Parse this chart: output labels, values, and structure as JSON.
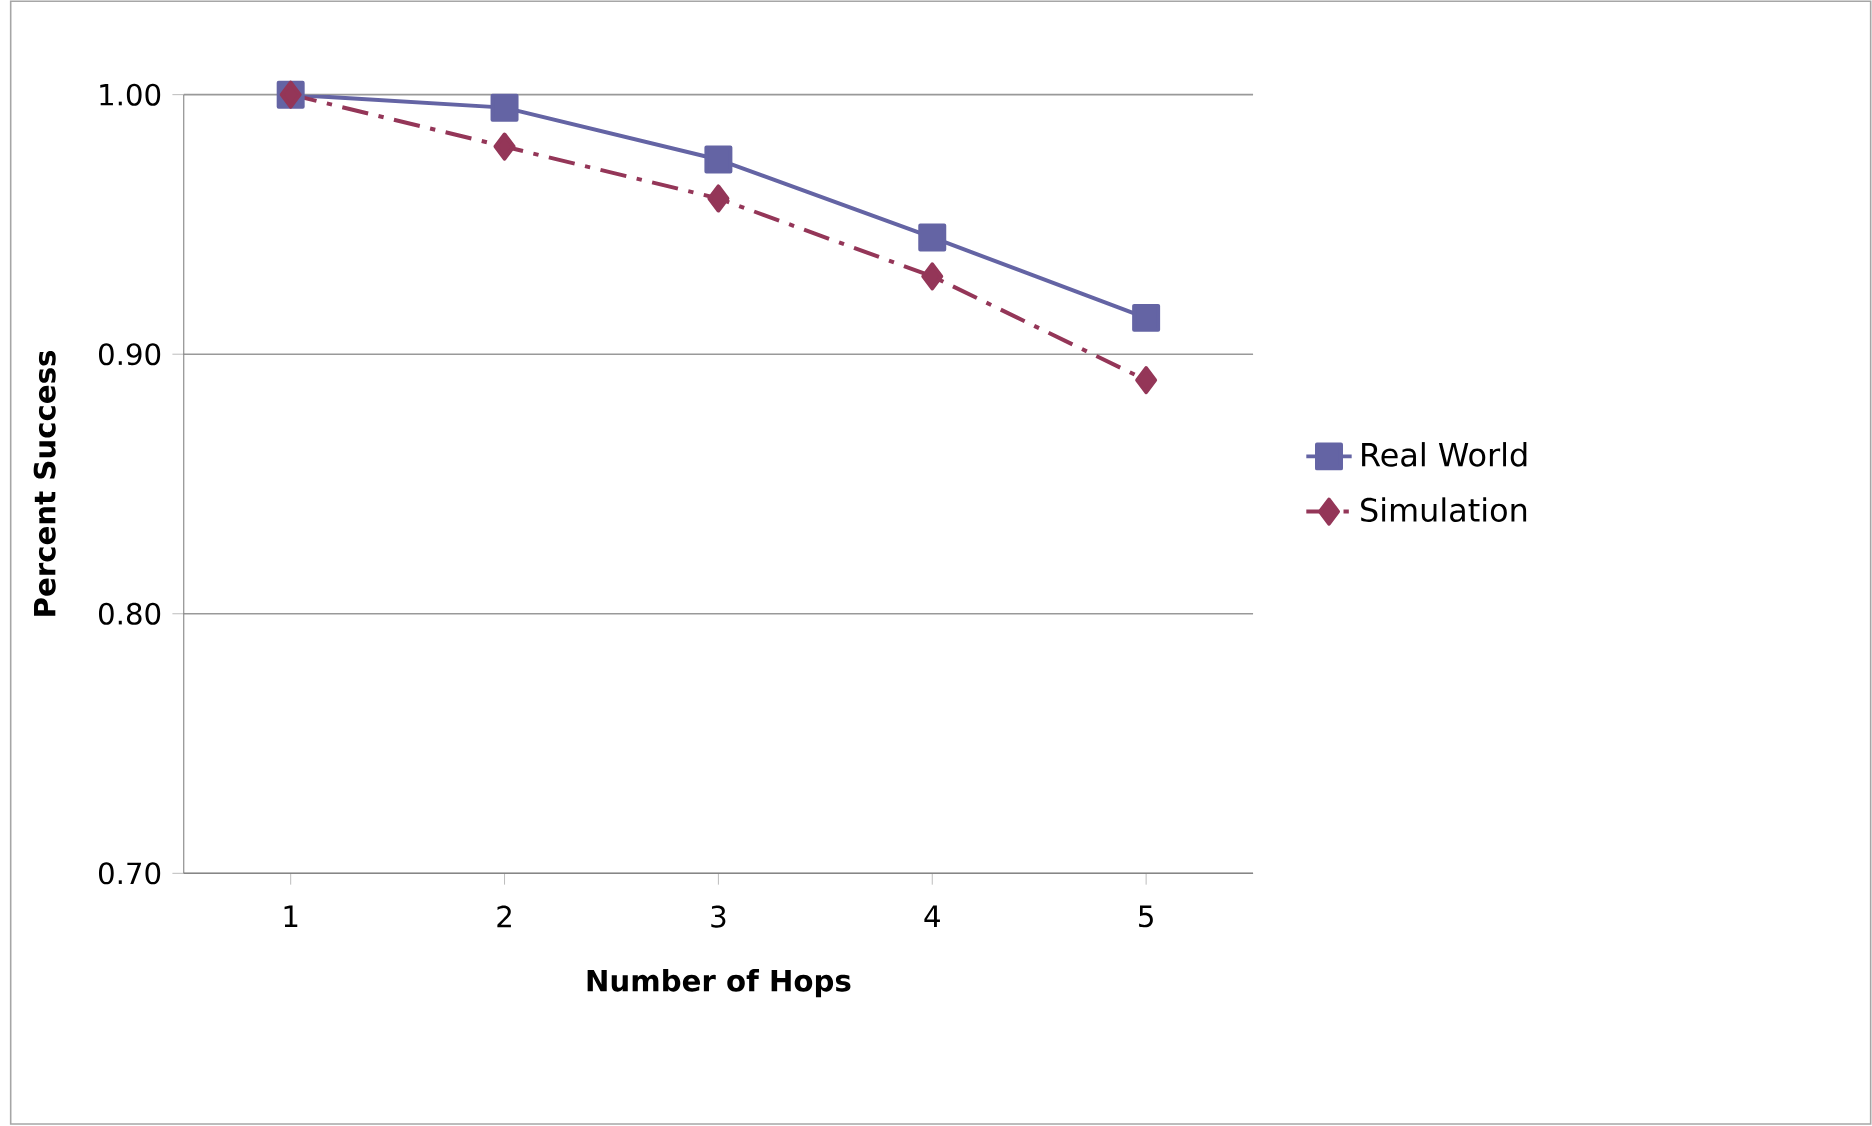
{
  "chart_data": {
    "type": "line",
    "xlabel": "Number of Hops",
    "ylabel": "Percent Success",
    "categories": [
      "1",
      "2",
      "3",
      "4",
      "5"
    ],
    "series": [
      {
        "name": "Real World",
        "color": "#6464a4",
        "values": [
          1.0,
          0.995,
          0.975,
          0.945,
          0.914
        ],
        "marker": "square",
        "line_style": "solid"
      },
      {
        "name": "Simulation",
        "color": "#943658",
        "values": [
          1.0,
          0.98,
          0.96,
          0.93,
          0.89
        ],
        "marker": "diamond",
        "line_style": "dashed"
      }
    ],
    "ylim": [
      0.7,
      1.0
    ],
    "yticks": [
      {
        "value": 0.7,
        "label": "0.70"
      },
      {
        "value": 0.8,
        "label": "0.80"
      },
      {
        "value": 0.9,
        "label": "0.90"
      },
      {
        "value": 1.0,
        "label": "1.00"
      }
    ],
    "grid": "y",
    "legend": "right"
  }
}
